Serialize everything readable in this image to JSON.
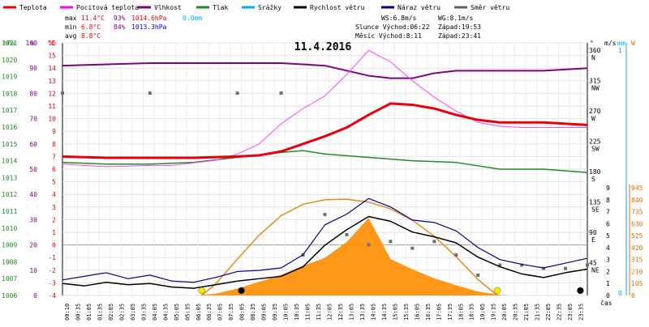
{
  "chart_data": {
    "type": "line",
    "title": "11.4.2016",
    "legend": [
      {
        "name": "Teplota",
        "color": "#e8000b"
      },
      {
        "name": "Pocitová teplota",
        "color": "#ff00ff"
      },
      {
        "name": "Vlhkost",
        "color": "#800080"
      },
      {
        "name": "Tlak",
        "color": "#228b22"
      },
      {
        "name": "Srážky",
        "color": "#00aaff"
      },
      {
        "name": "Rychlost větru",
        "color": "#000000"
      },
      {
        "name": "Náraz větru",
        "color": "#00008b"
      },
      {
        "name": "Směr větru",
        "color": "#606060"
      }
    ],
    "stats": {
      "max_label": "max",
      "max_temp": "11.4°C",
      "max_hum": "93%",
      "max_press": "1014.6hPa",
      "max_rain": "0.0mm",
      "min_label": "min",
      "min_temp": "6.8°C",
      "min_hum": "84%",
      "min_press": "1013.3hPa",
      "avg_label": "avg",
      "avg_temp": "8.8°C"
    },
    "wind_info": {
      "ws": "WS:6.8m/s",
      "wg": "WG:8.1m/s",
      "sun": "Slunce Východ:06:22",
      "sunset": "Západ:19:53",
      "moon": "Měsíc Východ:8:11",
      "moonset": "Západ:23:41"
    },
    "axes": {
      "left_units": [
        "hPa",
        "%",
        "°C"
      ],
      "right_units": [
        "°",
        "m/s",
        "mm",
        "W"
      ],
      "x_label": "čas",
      "pressure_ticks": [
        1006,
        1007,
        1008,
        1009,
        1010,
        1011,
        1012,
        1013,
        1014,
        1015,
        1016,
        1017,
        1018,
        1019,
        1020,
        1021
      ],
      "humidity_ticks": [
        0,
        10,
        20,
        30,
        40,
        50,
        60,
        70,
        80,
        90,
        100
      ],
      "temp_ticks": [
        -4,
        -3,
        -2,
        -1,
        0,
        1,
        2,
        3,
        4,
        5,
        6,
        7,
        8,
        9,
        10,
        11,
        12,
        13,
        14,
        15,
        16
      ],
      "dir_ticks": [
        {
          "deg": "360",
          "dir": "N"
        },
        {
          "deg": "315",
          "dir": "NW"
        },
        {
          "deg": "270",
          "dir": "W"
        },
        {
          "deg": "225",
          "dir": "SW"
        },
        {
          "deg": "180",
          "dir": "S"
        },
        {
          "deg": "135",
          "dir": "SE"
        },
        {
          "deg": "90",
          "dir": "E"
        },
        {
          "deg": "45",
          "dir": "NE"
        }
      ],
      "wind_ticks": [
        0,
        1,
        2,
        3,
        4,
        5,
        6,
        7,
        8,
        9
      ],
      "rain_ticks": [
        0,
        1
      ],
      "solar_ticks": [
        0,
        105,
        210,
        315,
        420,
        525,
        630,
        735,
        840,
        945
      ],
      "time_ticks": [
        "00:10",
        "00:35",
        "01:05",
        "01:35",
        "02:05",
        "02:35",
        "03:05",
        "03:35",
        "04:05",
        "04:35",
        "05:05",
        "05:35",
        "06:05",
        "06:35",
        "07:05",
        "07:35",
        "08:05",
        "08:35",
        "09:05",
        "09:35",
        "10:05",
        "10:35",
        "11:05",
        "11:35",
        "12:05",
        "12:35",
        "13:05",
        "13:35",
        "14:05",
        "14:35",
        "15:05",
        "15:35",
        "16:05",
        "16:35",
        "17:05",
        "17:35",
        "18:05",
        "18:35",
        "19:05",
        "19:35",
        "20:05",
        "20:35",
        "21:05",
        "21:35",
        "22:05",
        "22:35",
        "23:05",
        "23:35"
      ]
    },
    "series": {
      "temperature_c": [
        [
          0,
          7.0
        ],
        [
          2,
          6.9
        ],
        [
          4,
          6.9
        ],
        [
          6,
          6.9
        ],
        [
          8,
          7.0
        ],
        [
          9,
          7.1
        ],
        [
          10,
          7.4
        ],
        [
          11,
          8.0
        ],
        [
          12,
          8.6
        ],
        [
          13,
          9.3
        ],
        [
          14,
          10.3
        ],
        [
          15,
          11.2
        ],
        [
          16,
          11.1
        ],
        [
          17,
          10.8
        ],
        [
          18,
          10.3
        ],
        [
          19,
          9.9
        ],
        [
          20,
          9.7
        ],
        [
          21,
          9.7
        ],
        [
          22,
          9.7
        ],
        [
          23,
          9.6
        ],
        [
          24,
          9.5
        ]
      ],
      "feels_like_c": [
        [
          0,
          6.4
        ],
        [
          2,
          6.2
        ],
        [
          4,
          6.3
        ],
        [
          5,
          6.3
        ],
        [
          6,
          6.5
        ],
        [
          7,
          6.7
        ],
        [
          8,
          7.2
        ],
        [
          9,
          8.0
        ],
        [
          10,
          9.6
        ],
        [
          11,
          10.8
        ],
        [
          12,
          11.8
        ],
        [
          13,
          13.5
        ],
        [
          14,
          15.4
        ],
        [
          15,
          14.5
        ],
        [
          16,
          13.0
        ],
        [
          17,
          11.7
        ],
        [
          18,
          10.6
        ],
        [
          19,
          9.7
        ],
        [
          20,
          9.4
        ],
        [
          21,
          9.3
        ],
        [
          22,
          9.3
        ],
        [
          23,
          9.3
        ],
        [
          24,
          9.3
        ]
      ],
      "humidity_pct": [
        [
          0,
          91
        ],
        [
          4,
          92
        ],
        [
          8,
          92
        ],
        [
          10,
          92
        ],
        [
          12,
          91
        ],
        [
          13,
          89
        ],
        [
          14,
          87
        ],
        [
          15,
          86
        ],
        [
          16,
          86
        ],
        [
          17,
          88
        ],
        [
          18,
          89
        ],
        [
          19,
          89
        ],
        [
          20,
          89
        ],
        [
          22,
          89
        ],
        [
          24,
          90
        ]
      ],
      "pressure_hpa": [
        [
          0,
          1013.9
        ],
        [
          2,
          1013.8
        ],
        [
          4,
          1013.8
        ],
        [
          6,
          1013.9
        ],
        [
          8,
          1014.2
        ],
        [
          10,
          1014.5
        ],
        [
          11,
          1014.6
        ],
        [
          12,
          1014.4
        ],
        [
          14,
          1014.2
        ],
        [
          16,
          1014.0
        ],
        [
          18,
          1013.9
        ],
        [
          20,
          1013.5
        ],
        [
          22,
          1013.5
        ],
        [
          24,
          1013.3
        ]
      ],
      "wind_speed_ms": [
        [
          0,
          1.0
        ],
        [
          1,
          0.8
        ],
        [
          2,
          1.1
        ],
        [
          3,
          0.9
        ],
        [
          4,
          1.0
        ],
        [
          5,
          0.7
        ],
        [
          6,
          0.6
        ],
        [
          7,
          0.9
        ],
        [
          8,
          1.2
        ],
        [
          9,
          1.4
        ],
        [
          10,
          1.6
        ],
        [
          11,
          2.4
        ],
        [
          12,
          4.2
        ],
        [
          13,
          5.5
        ],
        [
          14,
          6.6
        ],
        [
          15,
          6.2
        ],
        [
          16,
          5.3
        ],
        [
          17,
          4.9
        ],
        [
          18,
          4.4
        ],
        [
          19,
          3.2
        ],
        [
          20,
          2.4
        ],
        [
          21,
          1.8
        ],
        [
          22,
          1.5
        ],
        [
          23,
          1.9
        ],
        [
          24,
          2.2
        ]
      ],
      "wind_gust_ms": [
        [
          0,
          1.3
        ],
        [
          1,
          1.6
        ],
        [
          2,
          1.9
        ],
        [
          3,
          1.4
        ],
        [
          4,
          1.7
        ],
        [
          5,
          1.2
        ],
        [
          6,
          1.1
        ],
        [
          7,
          1.5
        ],
        [
          8,
          2.0
        ],
        [
          9,
          2.1
        ],
        [
          10,
          2.3
        ],
        [
          11,
          3.4
        ],
        [
          12,
          5.9
        ],
        [
          13,
          6.8
        ],
        [
          14,
          8.1
        ],
        [
          15,
          7.4
        ],
        [
          16,
          6.3
        ],
        [
          17,
          6.1
        ],
        [
          18,
          5.4
        ],
        [
          19,
          4.0
        ],
        [
          20,
          3.0
        ],
        [
          21,
          2.6
        ],
        [
          22,
          2.3
        ],
        [
          23,
          2.7
        ],
        [
          24,
          3.1
        ]
      ],
      "wind_direction_deg": [
        [
          0,
          300
        ],
        [
          4,
          300
        ],
        [
          8,
          300
        ],
        [
          10,
          300
        ],
        [
          11,
          60
        ],
        [
          12,
          120
        ],
        [
          13,
          90
        ],
        [
          14,
          75
        ],
        [
          15,
          80
        ],
        [
          16,
          70
        ],
        [
          17,
          80
        ],
        [
          18,
          60
        ],
        [
          19,
          30
        ],
        [
          20,
          45
        ],
        [
          21,
          45
        ],
        [
          22,
          40
        ],
        [
          23,
          40
        ],
        [
          24,
          45
        ]
      ],
      "solar_wm2": [
        [
          6.1,
          0
        ],
        [
          7,
          15
        ],
        [
          8,
          60
        ],
        [
          9,
          120
        ],
        [
          10,
          180
        ],
        [
          11,
          260
        ],
        [
          12,
          330
        ],
        [
          13,
          470
        ],
        [
          14,
          680
        ],
        [
          15,
          320
        ],
        [
          16,
          230
        ],
        [
          17,
          150
        ],
        [
          18,
          90
        ],
        [
          19,
          35
        ],
        [
          20,
          5
        ],
        [
          20.5,
          0
        ]
      ],
      "solar_theoretical_wm2": [
        [
          6.37,
          0
        ],
        [
          7,
          100
        ],
        [
          8,
          320
        ],
        [
          9,
          530
        ],
        [
          10,
          700
        ],
        [
          11,
          800
        ],
        [
          12,
          840
        ],
        [
          13,
          845
        ],
        [
          14,
          820
        ],
        [
          15,
          760
        ],
        [
          16,
          660
        ],
        [
          17,
          520
        ],
        [
          18,
          340
        ],
        [
          19,
          140
        ],
        [
          19.88,
          0
        ]
      ]
    },
    "sun_markers": [
      {
        "label": "sunrise",
        "time": 6.37,
        "color": "#ffe800"
      },
      {
        "label": "moonrise",
        "time": 8.18,
        "color": "#000000"
      },
      {
        "label": "sunset",
        "time": 19.88,
        "color": "#ffe800"
      },
      {
        "label": "moonset",
        "time": 23.68,
        "color": "#000000"
      }
    ],
    "grid": true
  }
}
